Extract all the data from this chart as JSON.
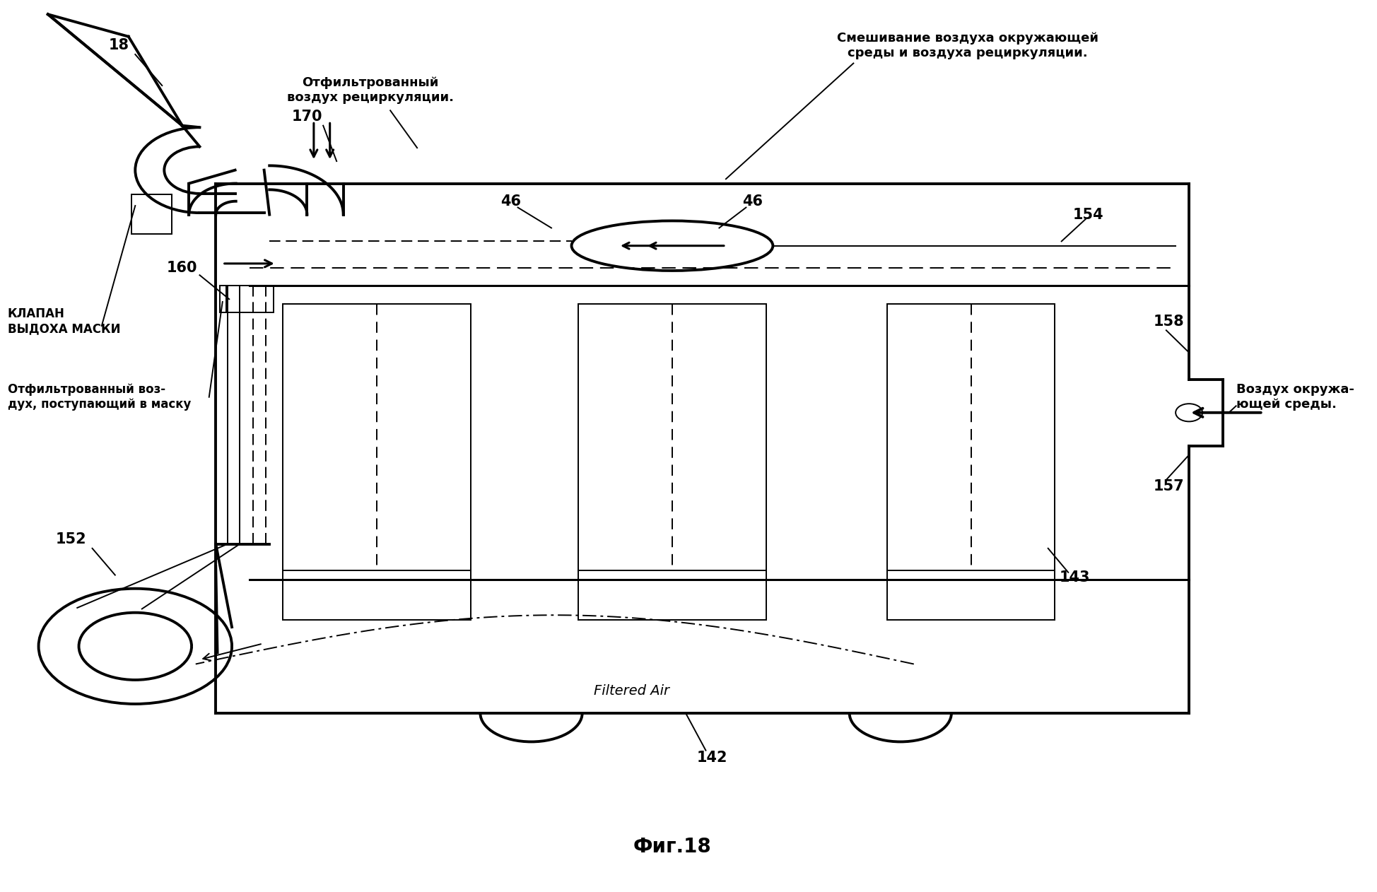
{
  "bg_color": "#ffffff",
  "line_color": "#000000",
  "fig_caption": "Фиг.18",
  "lw_main": 2.2,
  "lw_thin": 1.4,
  "lw_thick": 2.8,
  "font_bold": "bold",
  "font_family": "DejaVu Sans",
  "text_mixing": "Смешивание воздуха окружающей\nсреды и воздуха рециркуляции.",
  "text_filtered_recirc": "Отфильтрованный\nвоздух рециркуляции.",
  "text_filtered_mask": "Отфильтрованный воз-\nдух, поступающий в маску",
  "text_valve": "КЛАПАН\nВЫДОХА МАСКИ",
  "text_ambient": "Воздух окружа-\nющей среды.",
  "text_filtered_air": "Filtered Air"
}
